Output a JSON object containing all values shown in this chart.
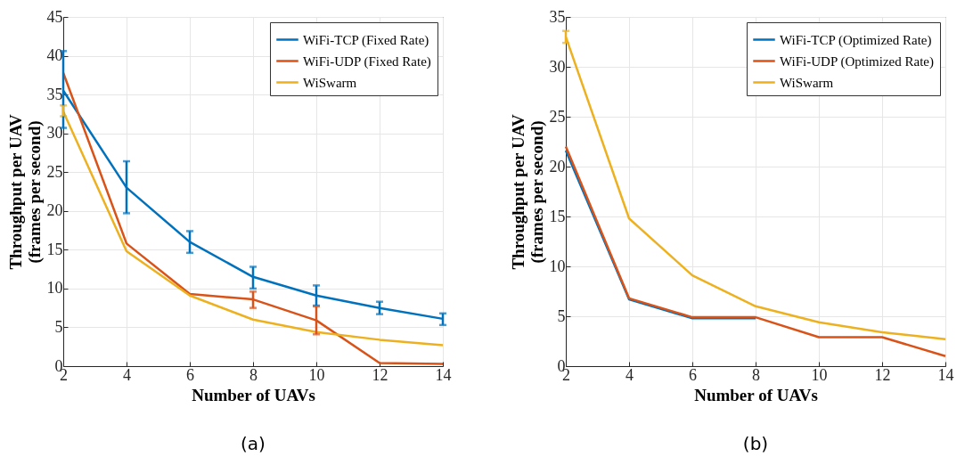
{
  "chart_data": [
    {
      "type": "line",
      "xlabel": "Number of UAVs",
      "ylabel": "Throughput per UAV\n(frames per second)",
      "x": [
        2,
        4,
        6,
        8,
        10,
        12,
        14
      ],
      "xlim": [
        2,
        14
      ],
      "xticks": [
        2,
        4,
        6,
        8,
        10,
        12,
        14
      ],
      "ylim": [
        0,
        45
      ],
      "yticks": [
        0,
        5,
        10,
        15,
        20,
        25,
        30,
        35,
        40,
        45
      ],
      "grid": true,
      "legend": "top right",
      "annotations": [
        "(a)"
      ],
      "series": [
        {
          "name": "WiFi-TCP (Fixed Rate)",
          "color": "#0072bd",
          "values": [
            35.5,
            23,
            16,
            11.5,
            9.1,
            7.5,
            6.1
          ],
          "errors": [
            [
              30.7,
              40.6
            ],
            [
              19.7,
              26.4
            ],
            [
              14.6,
              17.4
            ],
            [
              10,
              12.8
            ],
            [
              7.8,
              10.4
            ],
            [
              6.7,
              8.3
            ],
            [
              5.3,
              6.8
            ]
          ]
        },
        {
          "name": "WiFi-UDP (Fixed Rate)",
          "color": "#d95319",
          "values": [
            37.8,
            15.8,
            9.3,
            8.6,
            5.9,
            0.4,
            0.3
          ],
          "errors": [
            null,
            null,
            null,
            [
              7.5,
              9.6
            ],
            [
              4.1,
              7.7
            ],
            null,
            null
          ]
        },
        {
          "name": "WiSwarm",
          "color": "#edb120",
          "values": [
            32.8,
            14.8,
            9.1,
            6.0,
            4.4,
            3.4,
            2.7
          ],
          "errors": [
            [
              32.2,
              33.6
            ],
            null,
            null,
            null,
            null,
            null,
            null
          ]
        }
      ]
    },
    {
      "type": "line",
      "xlabel": "Number of UAVs",
      "ylabel": "Throughput per UAV\n(frames per second)",
      "x": [
        2,
        4,
        6,
        8,
        10,
        12,
        14
      ],
      "xlim": [
        2,
        14
      ],
      "xticks": [
        2,
        4,
        6,
        8,
        10,
        12,
        14
      ],
      "ylim": [
        0,
        35
      ],
      "yticks": [
        0,
        5,
        10,
        15,
        20,
        25,
        30,
        35
      ],
      "grid": true,
      "legend": "top right",
      "annotations": [
        "(b)"
      ],
      "series": [
        {
          "name": "WiFi-TCP (Optimized Rate)",
          "color": "#0072bd",
          "values": [
            21.6,
            6.7,
            4.8,
            4.8,
            null,
            null,
            null
          ]
        },
        {
          "name": "WiFi-UDP (Optimized Rate)",
          "color": "#d95319",
          "values": [
            22.0,
            6.8,
            4.9,
            4.9,
            2.9,
            2.9,
            1.0
          ]
        },
        {
          "name": "WiSwarm",
          "color": "#edb120",
          "values": [
            33.0,
            14.8,
            9.1,
            6.0,
            4.4,
            3.4,
            2.7
          ],
          "errors": [
            [
              32.4,
              33.6
            ],
            null,
            null,
            null,
            null,
            null,
            null
          ]
        }
      ]
    }
  ]
}
